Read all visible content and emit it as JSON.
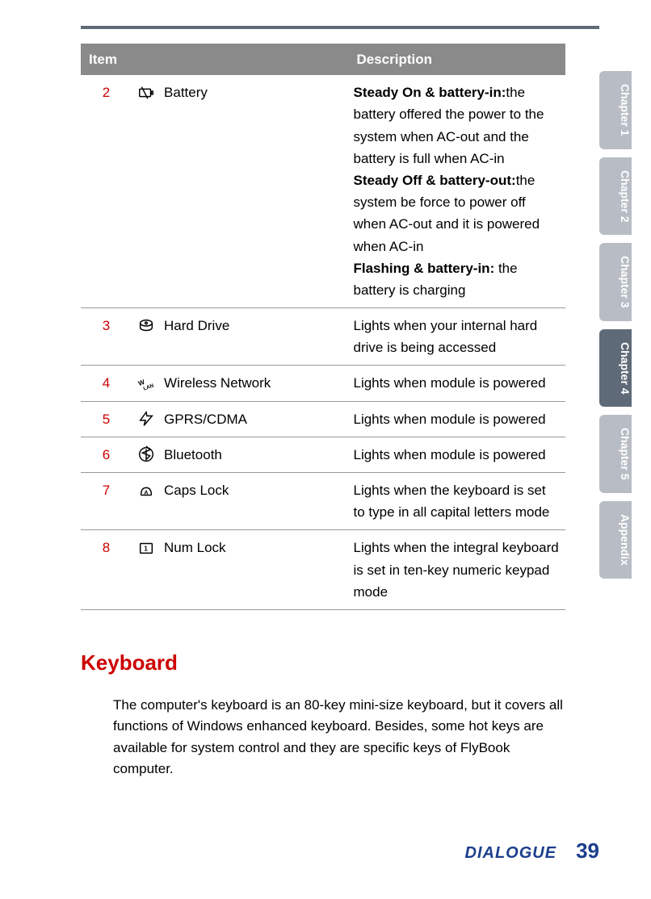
{
  "colors": {
    "header_bg": "#8a8a8a",
    "header_text": "#ffffff",
    "row_border": "#999999",
    "item_number": "#cc0000",
    "section_title": "#cc0000",
    "brand": "#1b3e8c",
    "tab_inactive": "#b8bdc5",
    "tab_active": "#5f6a78",
    "top_bar": "#5f6a78"
  },
  "table": {
    "headers": {
      "item": "Item",
      "description": "Description"
    },
    "rows": [
      {
        "num": "2",
        "icon": "battery-icon",
        "label": "Battery",
        "description_html": "<b>Steady On & battery-in:</b>the battery offered the power to the system when AC-out and the battery is full when AC-in<br><b>Steady Off & battery-out:</b>the system be force to power off when AC-out and it is powered when AC-in<br><b>Flashing & battery-in:</b> the battery is charging"
      },
      {
        "num": "3",
        "icon": "hard-drive-icon",
        "label": "Hard Drive",
        "description_html": "Lights when your internal hard drive is being accessed"
      },
      {
        "num": "4",
        "icon": "wlan-icon",
        "label": "Wireless Network",
        "description_html": "Lights when module is powered"
      },
      {
        "num": "5",
        "icon": "gprs-icon",
        "label": "GPRS/CDMA",
        "description_html": "Lights when module is powered"
      },
      {
        "num": "6",
        "icon": "bluetooth-icon",
        "label": "Bluetooth",
        "description_html": "Lights when module is powered"
      },
      {
        "num": "7",
        "icon": "caps-lock-icon",
        "label": "Caps Lock",
        "description_html": "Lights when the keyboard is set to type in all capital letters mode"
      },
      {
        "num": "8",
        "icon": "num-lock-icon",
        "label": "Num Lock",
        "description_html": "Lights when the integral keyboard is set in ten-key numeric keypad mode"
      }
    ]
  },
  "section": {
    "title": "Keyboard",
    "body": "The computer's keyboard is an 80-key mini-size keyboard, but it covers all functions of Windows enhanced keyboard. Besides, some hot keys are available for system control and they are specific keys of FlyBook computer."
  },
  "tabs": [
    {
      "label": "Chapter 1",
      "active": false
    },
    {
      "label": "Chapter 2",
      "active": false
    },
    {
      "label": "Chapter 3",
      "active": false
    },
    {
      "label": "Chapter 4",
      "active": true
    },
    {
      "label": "Chapter 5",
      "active": false
    },
    {
      "label": "Appendix",
      "active": false
    }
  ],
  "footer": {
    "brand": "DIALOGUE",
    "page": "39"
  }
}
